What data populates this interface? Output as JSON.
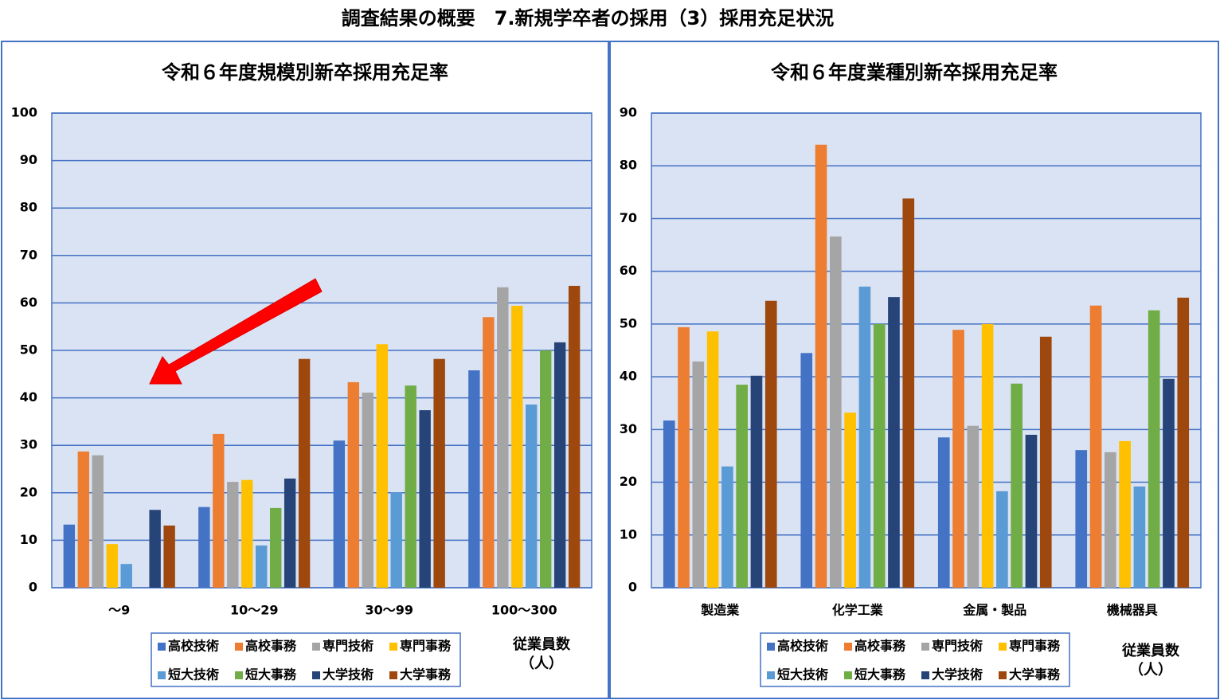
{
  "page_title": "調査結果の概要　7.新規学卒者の採用（3）採用充足状況",
  "chart_data": [
    {
      "type": "bar",
      "title": "令和６年度規模別新卒採用充足率",
      "categories": [
        "～9",
        "10～29",
        "30～99",
        "100～300"
      ],
      "xlabel": [
        "従業員数",
        "（人）"
      ],
      "ylim": [
        0,
        100
      ],
      "yticks": [
        0,
        10,
        20,
        30,
        40,
        50,
        60,
        70,
        80,
        90,
        100
      ],
      "grid": true,
      "series": [
        {
          "name": "高校技術",
          "color": "#4472c4",
          "values": [
            13.3,
            17,
            31,
            45.8
          ]
        },
        {
          "name": "高校事務",
          "color": "#ed7d31",
          "values": [
            28.7,
            32.4,
            43.3,
            57
          ]
        },
        {
          "name": "専門技術",
          "color": "#a5a5a5",
          "values": [
            27.9,
            22.3,
            41.1,
            63.3
          ]
        },
        {
          "name": "専門事務",
          "color": "#ffc000",
          "values": [
            9.2,
            22.7,
            51.3,
            59.4
          ]
        },
        {
          "name": "短大技術",
          "color": "#5b9bd5",
          "values": [
            5,
            8.9,
            20.1,
            38.6
          ]
        },
        {
          "name": "短大事務",
          "color": "#70ad47",
          "values": [
            null,
            16.8,
            42.6,
            50
          ]
        },
        {
          "name": "大学技術",
          "color": "#264478",
          "values": [
            16.4,
            23,
            37.4,
            51.7
          ]
        },
        {
          "name": "大学事務",
          "color": "#9e480e",
          "values": [
            13.1,
            48.2,
            48.2,
            63.6
          ]
        }
      ]
    },
    {
      "type": "bar",
      "title": "令和６年度業種別新卒採用充足率",
      "categories": [
        "製造業",
        "化学工業",
        "金属・製品",
        "機械器具"
      ],
      "xlabel": [
        "従業員数",
        "（人）"
      ],
      "ylim": [
        0,
        90
      ],
      "yticks": [
        0,
        10,
        20,
        30,
        40,
        50,
        60,
        70,
        80,
        90
      ],
      "grid": true,
      "series": [
        {
          "name": "高校技術",
          "color": "#4472c4",
          "values": [
            31.7,
            44.5,
            28.5,
            26.1
          ]
        },
        {
          "name": "高校事務",
          "color": "#ed7d31",
          "values": [
            49.4,
            84,
            48.9,
            53.5
          ]
        },
        {
          "name": "専門技術",
          "color": "#a5a5a5",
          "values": [
            42.9,
            66.6,
            30.7,
            25.7
          ]
        },
        {
          "name": "専門事務",
          "color": "#ffc000",
          "values": [
            48.6,
            33.2,
            50,
            27.8
          ]
        },
        {
          "name": "短大技術",
          "color": "#5b9bd5",
          "values": [
            23,
            57.1,
            18.3,
            19.2
          ]
        },
        {
          "name": "短大事務",
          "color": "#70ad47",
          "values": [
            38.5,
            50,
            38.7,
            52.6
          ]
        },
        {
          "name": "大学技術",
          "color": "#264478",
          "values": [
            40.2,
            55.1,
            29,
            39.6
          ]
        },
        {
          "name": "大学事務",
          "color": "#9e480e",
          "values": [
            54.4,
            73.8,
            47.6,
            55
          ]
        }
      ]
    }
  ]
}
